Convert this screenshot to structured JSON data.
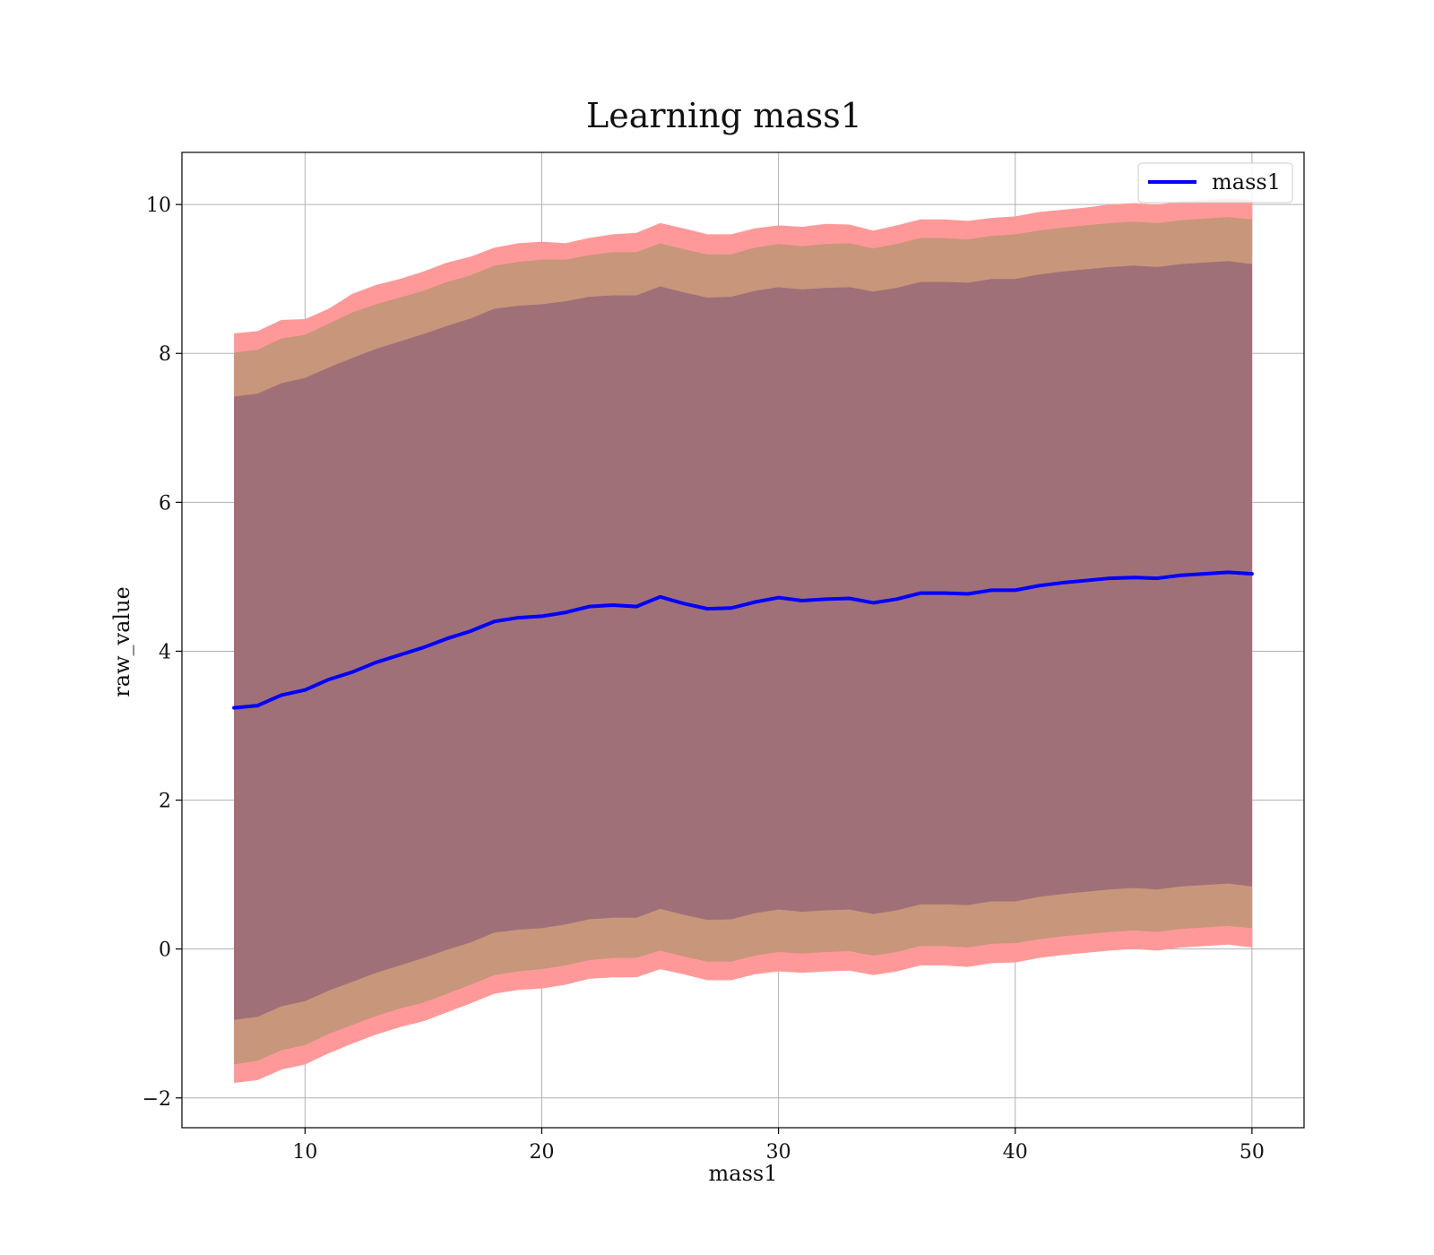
{
  "chart_data": {
    "type": "area",
    "title": "Learning mass1",
    "xlabel": "mass1",
    "ylabel": "raw_value",
    "xlim": [
      4.8,
      52.2
    ],
    "ylim": [
      -2.4,
      10.7
    ],
    "xticks": [
      10,
      20,
      30,
      40,
      50
    ],
    "yticks": [
      -2,
      0,
      2,
      4,
      6,
      8,
      10
    ],
    "xtick_labels": [
      "10",
      "20",
      "30",
      "40",
      "50"
    ],
    "ytick_labels": [
      "−2",
      "0",
      "2",
      "4",
      "6",
      "8",
      "10"
    ],
    "grid": true,
    "legend": {
      "position": "top-right",
      "entries": [
        "mass1"
      ]
    },
    "colors": {
      "line": "#0000ff",
      "band_outer": "#ff9999",
      "band_middle": "#c8967a",
      "band_inner": "#a07078"
    },
    "x": [
      7,
      8,
      9,
      10,
      11,
      12,
      13,
      14,
      15,
      16,
      17,
      18,
      19,
      20,
      21,
      22,
      23,
      24,
      25,
      26,
      27,
      28,
      29,
      30,
      31,
      32,
      33,
      34,
      35,
      36,
      37,
      38,
      39,
      40,
      41,
      42,
      43,
      44,
      45,
      46,
      47,
      48,
      49,
      50
    ],
    "series": [
      {
        "name": "mass1",
        "values": [
          3.24,
          3.27,
          3.41,
          3.48,
          3.62,
          3.72,
          3.85,
          3.95,
          4.05,
          4.17,
          4.27,
          4.4,
          4.45,
          4.47,
          4.52,
          4.6,
          4.62,
          4.6,
          4.73,
          4.64,
          4.57,
          4.58,
          4.66,
          4.72,
          4.68,
          4.7,
          4.71,
          4.65,
          4.7,
          4.78,
          4.78,
          4.77,
          4.82,
          4.82,
          4.88,
          4.92,
          4.95,
          4.98,
          4.99,
          4.98,
          5.02,
          5.04,
          5.06,
          5.04
        ]
      }
    ],
    "bands": [
      {
        "level": "outer",
        "upper": [
          8.27,
          8.3,
          8.45,
          8.46,
          8.6,
          8.8,
          8.92,
          9.0,
          9.1,
          9.22,
          9.3,
          9.42,
          9.48,
          9.5,
          9.48,
          9.55,
          9.6,
          9.62,
          9.75,
          9.68,
          9.6,
          9.6,
          9.68,
          9.72,
          9.7,
          9.74,
          9.73,
          9.65,
          9.72,
          9.8,
          9.8,
          9.78,
          9.82,
          9.84,
          9.9,
          9.93,
          9.96,
          10.0,
          10.02,
          10.0,
          10.04,
          10.06,
          10.08,
          10.06
        ],
        "lower": [
          -1.8,
          -1.76,
          -1.62,
          -1.55,
          -1.4,
          -1.27,
          -1.15,
          -1.05,
          -0.97,
          -0.85,
          -0.73,
          -0.6,
          -0.55,
          -0.53,
          -0.48,
          -0.4,
          -0.38,
          -0.38,
          -0.27,
          -0.34,
          -0.42,
          -0.42,
          -0.34,
          -0.3,
          -0.32,
          -0.3,
          -0.29,
          -0.35,
          -0.3,
          -0.22,
          -0.22,
          -0.24,
          -0.19,
          -0.18,
          -0.12,
          -0.08,
          -0.05,
          -0.02,
          0.0,
          -0.02,
          0.02,
          0.04,
          0.06,
          0.02
        ]
      },
      {
        "level": "middle",
        "upper": [
          8.01,
          8.05,
          8.2,
          8.25,
          8.4,
          8.55,
          8.66,
          8.75,
          8.84,
          8.96,
          9.05,
          9.18,
          9.23,
          9.26,
          9.26,
          9.32,
          9.36,
          9.36,
          9.48,
          9.4,
          9.33,
          9.33,
          9.42,
          9.47,
          9.44,
          9.47,
          9.48,
          9.41,
          9.47,
          9.55,
          9.55,
          9.53,
          9.58,
          9.6,
          9.65,
          9.69,
          9.72,
          9.75,
          9.77,
          9.75,
          9.79,
          9.81,
          9.83,
          9.8
        ],
        "lower": [
          -1.55,
          -1.5,
          -1.36,
          -1.29,
          -1.14,
          -1.02,
          -0.9,
          -0.8,
          -0.72,
          -0.6,
          -0.48,
          -0.35,
          -0.3,
          -0.27,
          -0.22,
          -0.15,
          -0.12,
          -0.12,
          -0.02,
          -0.1,
          -0.17,
          -0.17,
          -0.09,
          -0.04,
          -0.06,
          -0.04,
          -0.03,
          -0.09,
          -0.04,
          0.04,
          0.04,
          0.02,
          0.07,
          0.08,
          0.13,
          0.17,
          0.2,
          0.23,
          0.25,
          0.23,
          0.27,
          0.29,
          0.31,
          0.28
        ]
      },
      {
        "level": "inner",
        "upper": [
          7.42,
          7.46,
          7.6,
          7.67,
          7.81,
          7.94,
          8.06,
          8.16,
          8.26,
          8.37,
          8.47,
          8.6,
          8.64,
          8.66,
          8.7,
          8.76,
          8.78,
          8.78,
          8.9,
          8.82,
          8.75,
          8.76,
          8.84,
          8.89,
          8.86,
          8.88,
          8.89,
          8.83,
          8.88,
          8.96,
          8.96,
          8.95,
          9.0,
          9.0,
          9.06,
          9.1,
          9.13,
          9.16,
          9.18,
          9.16,
          9.2,
          9.22,
          9.24,
          9.2
        ],
        "lower": [
          -0.95,
          -0.91,
          -0.77,
          -0.7,
          -0.56,
          -0.44,
          -0.32,
          -0.22,
          -0.12,
          -0.01,
          0.09,
          0.22,
          0.26,
          0.28,
          0.33,
          0.4,
          0.42,
          0.42,
          0.54,
          0.46,
          0.39,
          0.4,
          0.48,
          0.53,
          0.5,
          0.52,
          0.53,
          0.47,
          0.52,
          0.6,
          0.6,
          0.59,
          0.64,
          0.64,
          0.7,
          0.74,
          0.77,
          0.8,
          0.82,
          0.8,
          0.84,
          0.86,
          0.88,
          0.84
        ]
      }
    ]
  }
}
